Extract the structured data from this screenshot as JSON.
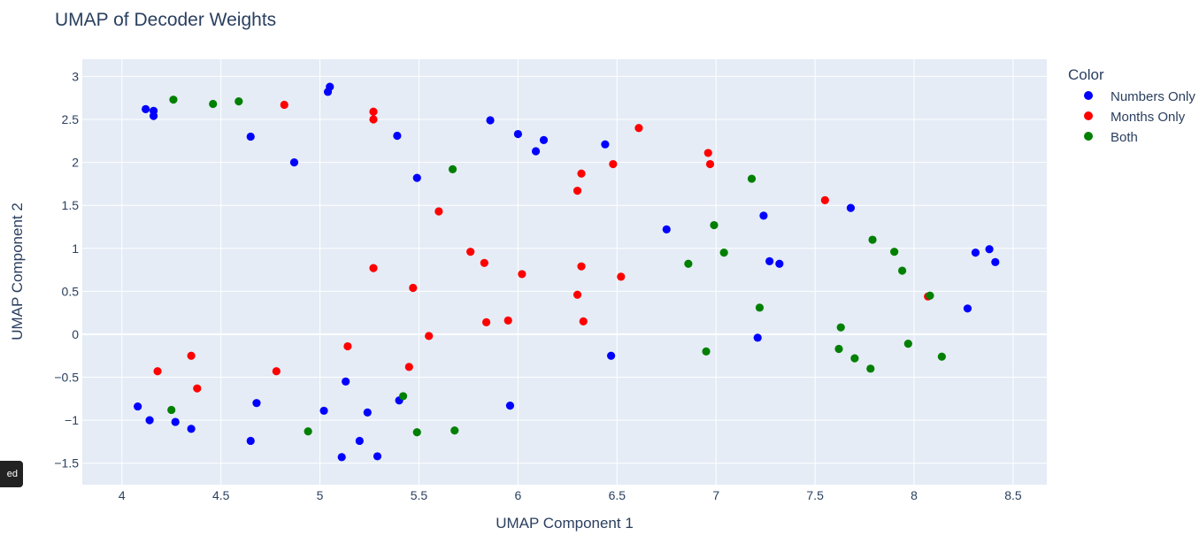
{
  "chart_data": {
    "type": "scatter",
    "title": "UMAP of Decoder Weights",
    "xlabel": "UMAP Component 1",
    "ylabel": "UMAP Component 2",
    "xlim": [
      3.8,
      8.67
    ],
    "ylim": [
      -1.75,
      3.2
    ],
    "xticks": [
      4,
      4.5,
      5,
      5.5,
      6,
      6.5,
      7,
      7.5,
      8,
      8.5
    ],
    "xtick_labels": [
      "4",
      "4.5",
      "5",
      "5.5",
      "6",
      "6.5",
      "7",
      "7.5",
      "8",
      "8.5"
    ],
    "yticks": [
      -1.5,
      -1,
      -0.5,
      0,
      0.5,
      1,
      1.5,
      2,
      2.5,
      3
    ],
    "ytick_labels": [
      "−1.5",
      "−1",
      "−0.5",
      "0",
      "0.5",
      "1",
      "1.5",
      "2",
      "2.5",
      "3"
    ],
    "grid": true,
    "legend_title": "Color",
    "legend_position": "right",
    "series": [
      {
        "name": "Numbers Only",
        "color": "#0000ff",
        "points": [
          [
            4.12,
            2.62
          ],
          [
            4.16,
            2.6
          ],
          [
            4.16,
            2.54
          ],
          [
            4.65,
            2.3
          ],
          [
            4.87,
            2.0
          ],
          [
            5.04,
            2.82
          ],
          [
            5.05,
            2.88
          ],
          [
            5.39,
            2.31
          ],
          [
            5.49,
            1.82
          ],
          [
            5.86,
            2.49
          ],
          [
            6.0,
            2.33
          ],
          [
            6.09,
            2.13
          ],
          [
            6.13,
            2.26
          ],
          [
            6.44,
            2.21
          ],
          [
            6.75,
            1.22
          ],
          [
            7.24,
            1.38
          ],
          [
            7.27,
            0.85
          ],
          [
            7.32,
            0.82
          ],
          [
            7.68,
            1.47
          ],
          [
            8.27,
            0.3
          ],
          [
            8.31,
            0.95
          ],
          [
            8.38,
            0.99
          ],
          [
            8.41,
            0.84
          ],
          [
            7.21,
            -0.04
          ],
          [
            6.47,
            -0.25
          ],
          [
            5.96,
            -0.83
          ],
          [
            5.4,
            -0.77
          ],
          [
            5.24,
            -0.91
          ],
          [
            5.13,
            -0.55
          ],
          [
            5.02,
            -0.89
          ],
          [
            5.2,
            -1.24
          ],
          [
            5.11,
            -1.43
          ],
          [
            5.29,
            -1.42
          ],
          [
            4.68,
            -0.8
          ],
          [
            4.65,
            -1.24
          ],
          [
            4.08,
            -0.84
          ],
          [
            4.14,
            -1.0
          ],
          [
            4.27,
            -1.02
          ],
          [
            4.35,
            -1.1
          ]
        ]
      },
      {
        "name": "Months Only",
        "color": "#ff0000",
        "points": [
          [
            4.82,
            2.67
          ],
          [
            5.27,
            2.59
          ],
          [
            5.27,
            2.5
          ],
          [
            5.27,
            0.77
          ],
          [
            5.47,
            0.54
          ],
          [
            5.6,
            1.43
          ],
          [
            5.76,
            0.96
          ],
          [
            5.83,
            0.83
          ],
          [
            5.84,
            0.14
          ],
          [
            5.95,
            0.16
          ],
          [
            6.02,
            0.7
          ],
          [
            5.55,
            -0.02
          ],
          [
            5.45,
            -0.38
          ],
          [
            5.14,
            -0.14
          ],
          [
            4.78,
            -0.43
          ],
          [
            4.18,
            -0.43
          ],
          [
            4.35,
            -0.25
          ],
          [
            4.38,
            -0.63
          ],
          [
            6.3,
            1.67
          ],
          [
            6.32,
            1.87
          ],
          [
            6.32,
            0.79
          ],
          [
            6.3,
            0.46
          ],
          [
            6.33,
            0.15
          ],
          [
            6.48,
            1.98
          ],
          [
            6.52,
            0.67
          ],
          [
            6.61,
            2.4
          ],
          [
            6.96,
            2.11
          ],
          [
            6.97,
            1.98
          ],
          [
            7.55,
            1.56
          ],
          [
            8.07,
            0.44
          ]
        ]
      },
      {
        "name": "Both",
        "color": "#008000",
        "points": [
          [
            4.26,
            2.73
          ],
          [
            4.46,
            2.68
          ],
          [
            4.59,
            2.71
          ],
          [
            5.67,
            1.92
          ],
          [
            4.25,
            -0.88
          ],
          [
            4.94,
            -1.13
          ],
          [
            5.42,
            -0.72
          ],
          [
            5.49,
            -1.14
          ],
          [
            5.68,
            -1.12
          ],
          [
            6.86,
            0.82
          ],
          [
            6.99,
            1.27
          ],
          [
            7.04,
            0.95
          ],
          [
            6.95,
            -0.2
          ],
          [
            7.18,
            1.81
          ],
          [
            7.22,
            0.31
          ],
          [
            7.63,
            0.08
          ],
          [
            7.62,
            -0.17
          ],
          [
            7.7,
            -0.28
          ],
          [
            7.78,
            -0.4
          ],
          [
            7.79,
            1.1
          ],
          [
            7.9,
            0.96
          ],
          [
            7.94,
            0.74
          ],
          [
            7.97,
            -0.11
          ],
          [
            8.08,
            0.45
          ],
          [
            8.14,
            -0.26
          ]
        ]
      }
    ]
  },
  "ui": {
    "toast_text": "ed"
  }
}
